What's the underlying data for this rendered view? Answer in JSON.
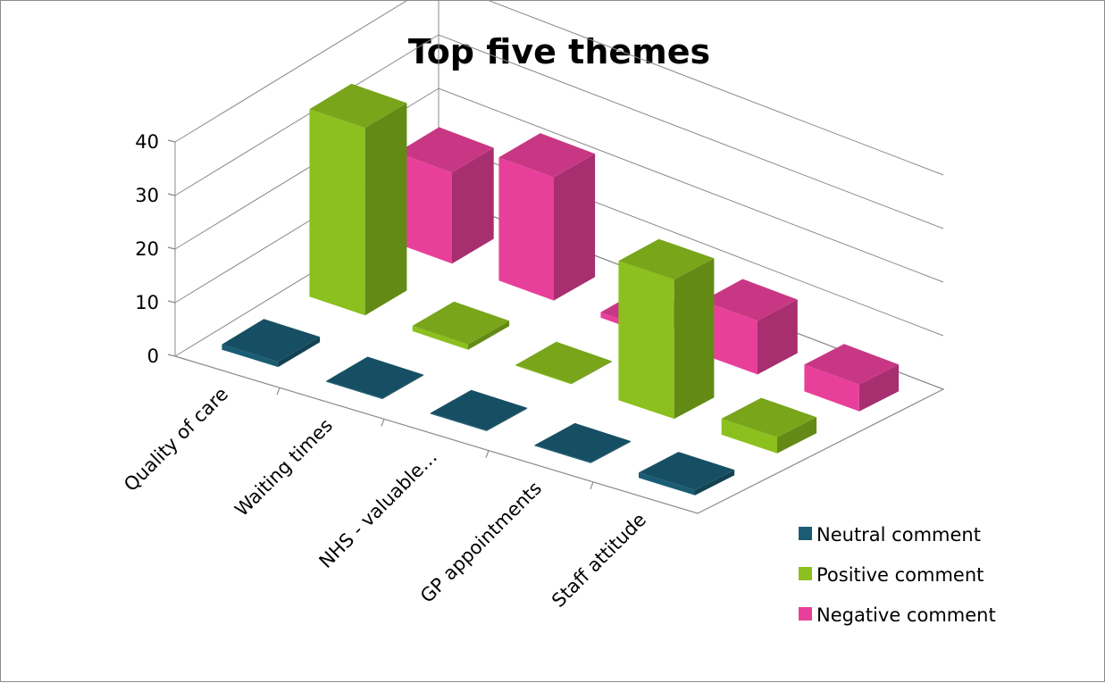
{
  "chart_data": {
    "type": "bar",
    "subtype": "3d-column",
    "title": "Top five themes",
    "xlabel": "",
    "ylabel": "",
    "categories": [
      "Quality of care",
      "Waiting times",
      "NHS - valuable…",
      "GP appointments",
      "Staff attitude"
    ],
    "y_ticks": [
      "0",
      "10",
      "20",
      "30",
      "40"
    ],
    "ylim": [
      0,
      40
    ],
    "grid": true,
    "legend_position": "right",
    "series": [
      {
        "name": "Neutral comment",
        "color": "#1a5c73",
        "values": [
          1,
          0,
          0,
          0,
          1
        ]
      },
      {
        "name": "Positive comment",
        "color": "#8bc01e",
        "values": [
          35,
          1,
          0,
          26,
          3
        ]
      },
      {
        "name": "Negative comment",
        "color": "#e8409a",
        "values": [
          17,
          23,
          1,
          10,
          5
        ]
      }
    ]
  }
}
